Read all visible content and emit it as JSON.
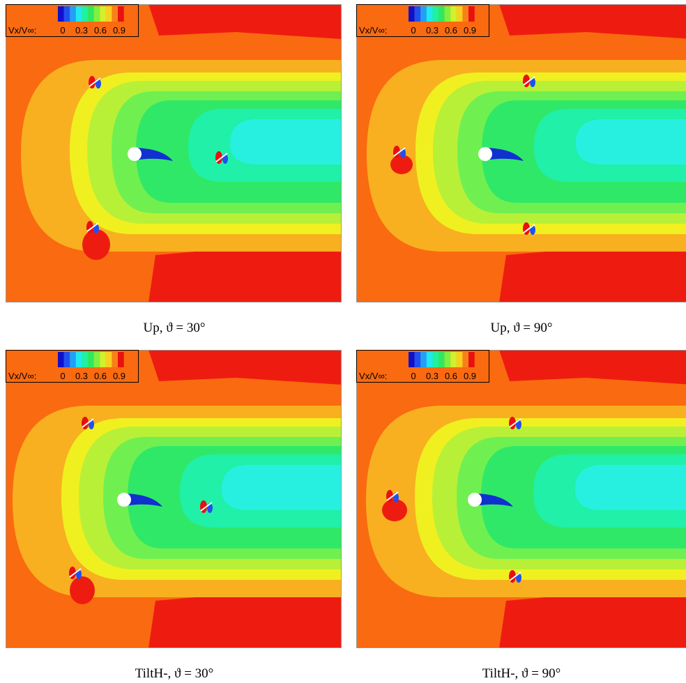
{
  "panels": [
    {
      "caption": "Up, ϑ = 30°",
      "legend": {
        "label": "Vx/V∞:",
        "ticks": [
          "0",
          "0.3",
          "0.6",
          "0.9"
        ]
      }
    },
    {
      "caption": "Up, ϑ = 90°",
      "legend": {
        "label": "Vx/V∞:",
        "ticks": [
          "0",
          "0.3",
          "0.6",
          "0.9"
        ]
      }
    },
    {
      "caption": "TiltH-, ϑ = 30°",
      "legend": {
        "label": "Vx/V∞:",
        "ticks": [
          "0",
          "0.3",
          "0.6",
          "0.9"
        ]
      }
    },
    {
      "caption": "TiltH-, ϑ = 90°",
      "legend": {
        "label": "Vx/V∞:",
        "ticks": [
          "0",
          "0.3",
          "0.6",
          "0.9"
        ]
      }
    }
  ]
}
